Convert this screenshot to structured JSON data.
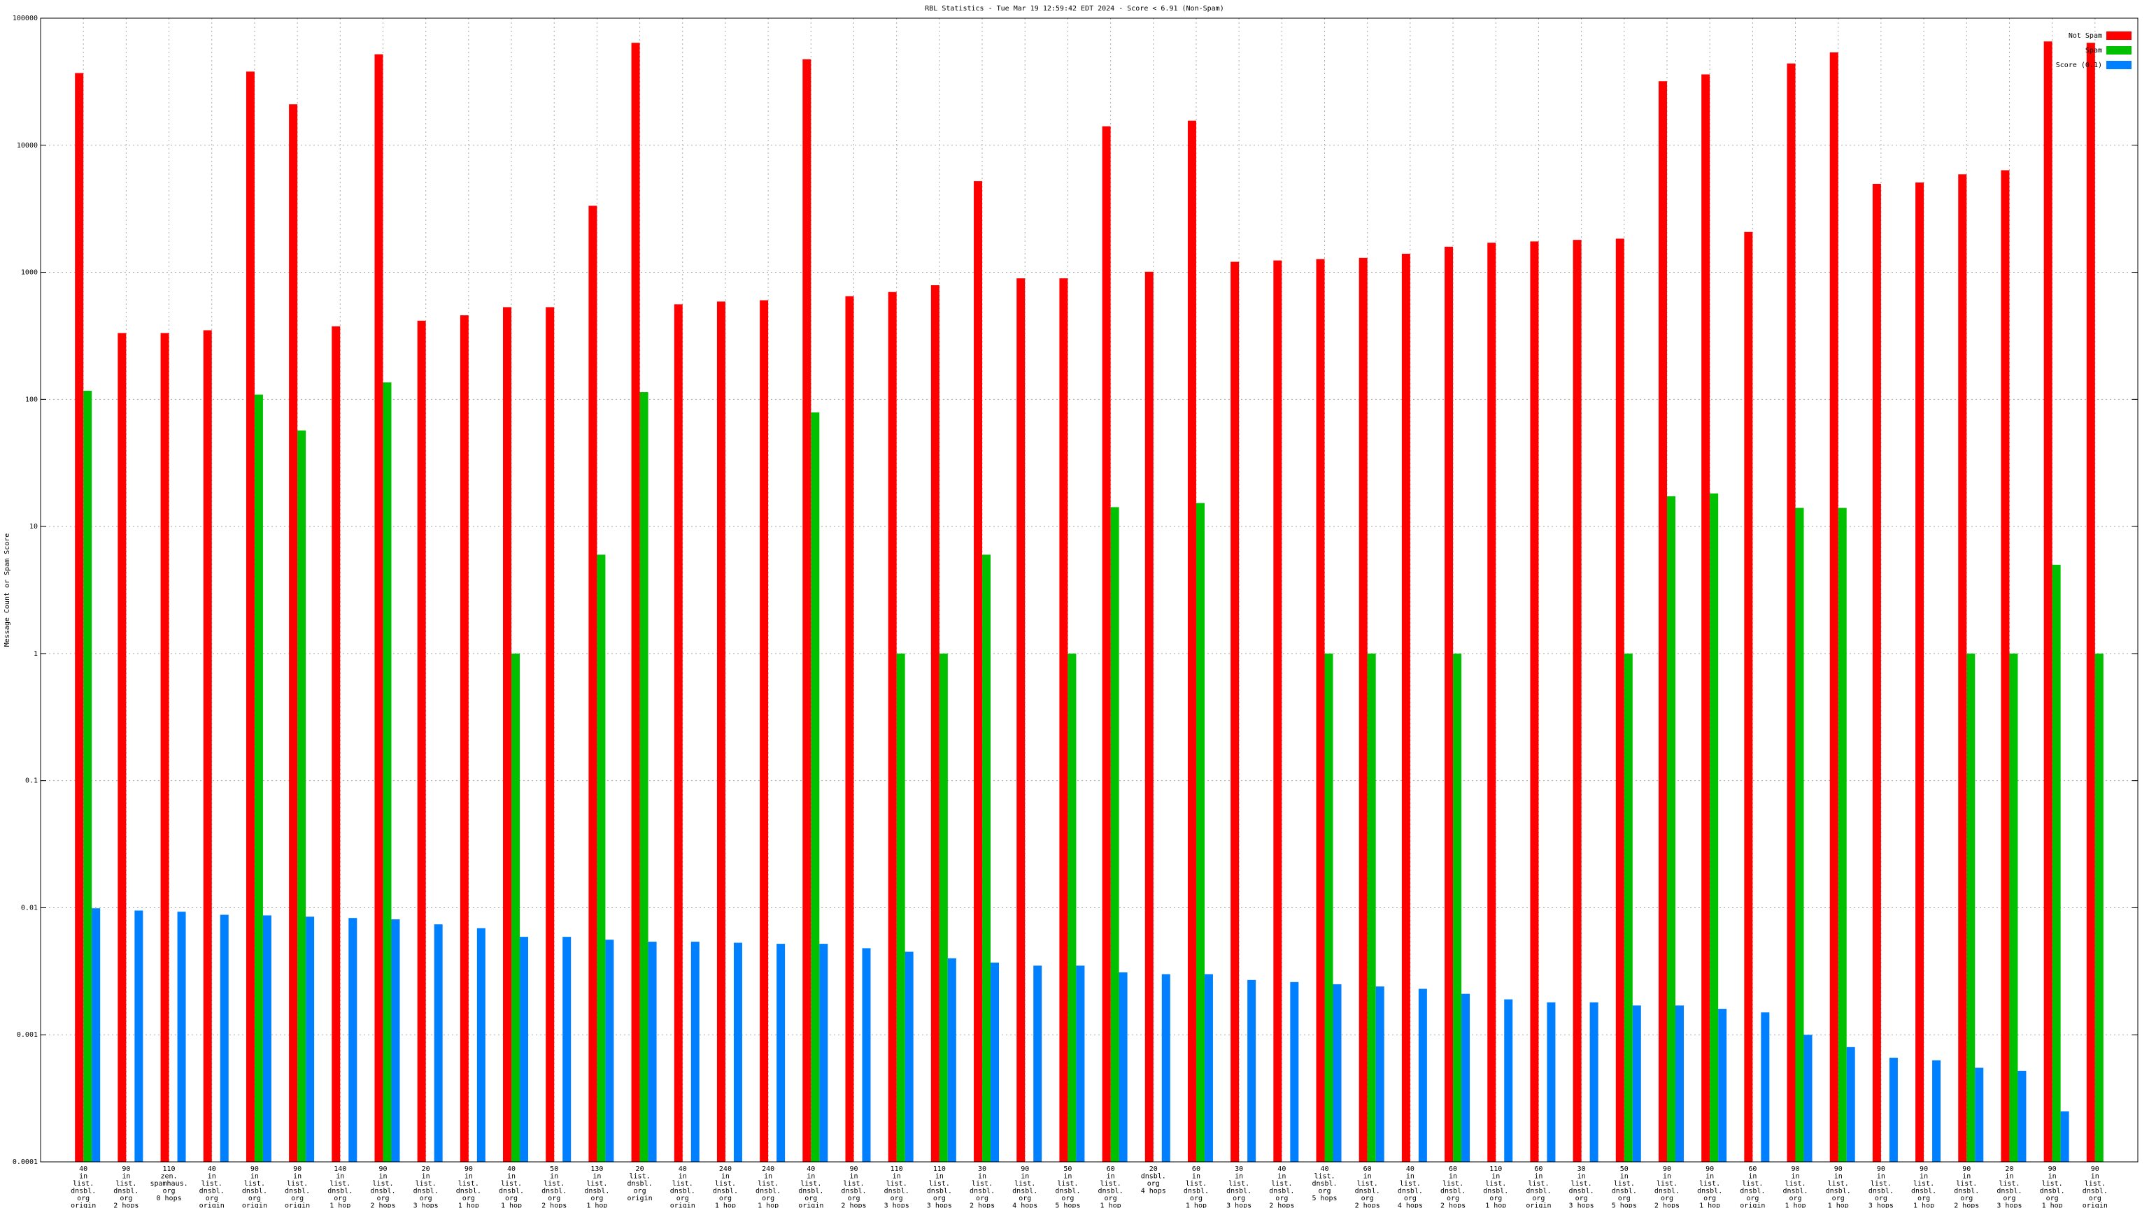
{
  "chart_data": {
    "type": "bar",
    "title": "RBL Statistics - Tue Mar 19 12:59:42 EDT 2024 - Score < 6.91 (Non-Spam)",
    "y_label": "Message Count or Spam Score",
    "y_log": true,
    "grid": true,
    "legend": "top-right",
    "ylim": [
      0.0001,
      100000
    ],
    "yticks": [
      0.0001,
      0.001,
      0.01,
      0.1,
      1,
      10,
      100,
      1000,
      10000,
      100000
    ],
    "categories": [
      [
        "40",
        "in",
        "list.",
        "dnsbl.",
        "org",
        "origin"
      ],
      [
        "90",
        "in",
        "list.",
        "dnsbl.",
        "org",
        "2 hops"
      ],
      [
        "110",
        "zen.",
        "spamhaus.",
        "org",
        "0 hops"
      ],
      [
        "40",
        "in",
        "list.",
        "dnsbl.",
        "org",
        "origin"
      ],
      [
        "90",
        "in",
        "list.",
        "dnsbl.",
        "org",
        "origin"
      ],
      [
        "90",
        "in",
        "list.",
        "dnsbl.",
        "org",
        "origin"
      ],
      [
        "140",
        "in",
        "list.",
        "dnsbl.",
        "org",
        "1 hop"
      ],
      [
        "90",
        "in",
        "list.",
        "dnsbl.",
        "org",
        "2 hops"
      ],
      [
        "20",
        "in",
        "list.",
        "dnsbl.",
        "org",
        "3 hops"
      ],
      [
        "90",
        "in",
        "list.",
        "dnsbl.",
        "org",
        "1 hop"
      ],
      [
        "40",
        "in",
        "list.",
        "dnsbl.",
        "org",
        "1 hop"
      ],
      [
        "50",
        "in",
        "list.",
        "dnsbl.",
        "org",
        "2 hops"
      ],
      [
        "130",
        "in",
        "list.",
        "dnsbl.",
        "org",
        "1 hop"
      ],
      [
        "20",
        "list.",
        "dnsbl.",
        "org",
        "origin"
      ],
      [
        "40",
        "in",
        "list.",
        "dnsbl.",
        "org",
        "origin"
      ],
      [
        "240",
        "in",
        "list.",
        "dnsbl.",
        "org",
        "1 hop"
      ],
      [
        "240",
        "in",
        "list.",
        "dnsbl.",
        "org",
        "1 hop"
      ],
      [
        "40",
        "in",
        "list.",
        "dnsbl.",
        "org",
        "origin"
      ],
      [
        "90",
        "in",
        "list.",
        "dnsbl.",
        "org",
        "2 hops"
      ],
      [
        "110",
        "in",
        "list.",
        "dnsbl.",
        "org",
        "3 hops"
      ],
      [
        "110",
        "in",
        "list.",
        "dnsbl.",
        "org",
        "3 hops"
      ],
      [
        "30",
        "in",
        "list.",
        "dnsbl.",
        "org",
        "2 hops"
      ],
      [
        "90",
        "in",
        "list.",
        "dnsbl.",
        "org",
        "4 hops"
      ],
      [
        "50",
        "in",
        "list.",
        "dnsbl.",
        "org",
        "5 hops"
      ],
      [
        "60",
        "in",
        "list.",
        "dnsbl.",
        "org",
        "1 hop"
      ],
      [
        "20",
        "dnsbl.",
        "org",
        "4 hops"
      ],
      [
        "60",
        "in",
        "list.",
        "dnsbl.",
        "org",
        "1 hop"
      ],
      [
        "30",
        "in",
        "list.",
        "dnsbl.",
        "org",
        "3 hops"
      ],
      [
        "40",
        "in",
        "list.",
        "dnsbl.",
        "org",
        "2 hops"
      ],
      [
        "40",
        "list.",
        "dnsbl.",
        "org",
        "5 hops"
      ],
      [
        "60",
        "in",
        "list.",
        "dnsbl.",
        "org",
        "2 hops"
      ],
      [
        "40",
        "in",
        "list.",
        "dnsbl.",
        "org",
        "4 hops"
      ],
      [
        "60",
        "in",
        "list.",
        "dnsbl.",
        "org",
        "2 hops"
      ],
      [
        "110",
        "in",
        "list.",
        "dnsbl.",
        "org",
        "1 hop"
      ],
      [
        "60",
        "in",
        "list.",
        "dnsbl.",
        "org",
        "origin"
      ],
      [
        "30",
        "in",
        "list.",
        "dnsbl.",
        "org",
        "3 hops"
      ],
      [
        "50",
        "in",
        "list.",
        "dnsbl.",
        "org",
        "5 hops"
      ],
      [
        "90",
        "in",
        "list.",
        "dnsbl.",
        "org",
        "2 hops"
      ],
      [
        "90",
        "in",
        "list.",
        "dnsbl.",
        "org",
        "1 hop"
      ],
      [
        "60",
        "in",
        "list.",
        "dnsbl.",
        "org",
        "origin"
      ],
      [
        "90",
        "in",
        "list.",
        "dnsbl.",
        "org",
        "1 hop"
      ],
      [
        "90",
        "in",
        "list.",
        "dnsbl.",
        "org",
        "1 hop"
      ],
      [
        "90",
        "in",
        "list.",
        "dnsbl.",
        "org",
        "3 hops"
      ],
      [
        "90",
        "in",
        "list.",
        "dnsbl.",
        "org",
        "1 hop"
      ],
      [
        "90",
        "in",
        "list.",
        "dnsbl.",
        "org",
        "2 hops"
      ],
      [
        "20",
        "in",
        "list.",
        "dnsbl.",
        "org",
        "3 hops"
      ],
      [
        "90",
        "in",
        "list.",
        "dnsbl.",
        "org",
        "1 hop"
      ],
      [
        "90",
        "in",
        "list.",
        "dnsbl.",
        "org",
        "origin"
      ]
    ],
    "series": [
      {
        "name": "Not Spam",
        "color": "#ff0000",
        "values": [
          37000,
          333,
          333,
          350,
          38000,
          21000,
          376,
          52000,
          416,
          459,
          532,
          532,
          3340,
          64000,
          560,
          589,
          603,
          47500,
          649,
          700,
          792,
          5220,
          897,
          897,
          14100,
          1010,
          15600,
          1210,
          1240,
          1270,
          1300,
          1400,
          1590,
          1710,
          1750,
          1800,
          1840,
          31900,
          36100,
          2080,
          44000,
          53800,
          4970,
          5090,
          5910,
          6360,
          65600,
          64000
        ]
      },
      {
        "name": "Spam",
        "color": "#00c000",
        "values": [
          117,
          null,
          null,
          null,
          109,
          57,
          null,
          136,
          null,
          null,
          1,
          null,
          6,
          114,
          null,
          null,
          null,
          79,
          null,
          1,
          1,
          6,
          null,
          1,
          14.2,
          null,
          15.3,
          null,
          null,
          1,
          1,
          null,
          1,
          null,
          null,
          null,
          1,
          17.3,
          18.2,
          null,
          14,
          14,
          null,
          null,
          1,
          1,
          5,
          1
        ]
      },
      {
        "name": "Score (0.1)",
        "color": "#0080ff",
        "values": [
          0.0099,
          0.0095,
          0.0093,
          0.0088,
          0.0087,
          0.0085,
          0.0083,
          0.0081,
          0.0074,
          0.0069,
          0.0059,
          0.0059,
          0.0056,
          0.0054,
          0.0054,
          0.0053,
          0.0052,
          0.0052,
          0.0048,
          0.0045,
          0.004,
          0.0037,
          0.0035,
          0.0035,
          0.0031,
          0.003,
          0.003,
          0.0027,
          0.0026,
          0.0025,
          0.0024,
          0.0023,
          0.0021,
          0.0019,
          0.0018,
          0.0018,
          0.0017,
          0.0017,
          0.0016,
          0.0015,
          0.001,
          0.0008,
          0.00066,
          0.00063,
          0.00055,
          0.00052,
          0.00025,
          null
        ]
      }
    ]
  }
}
